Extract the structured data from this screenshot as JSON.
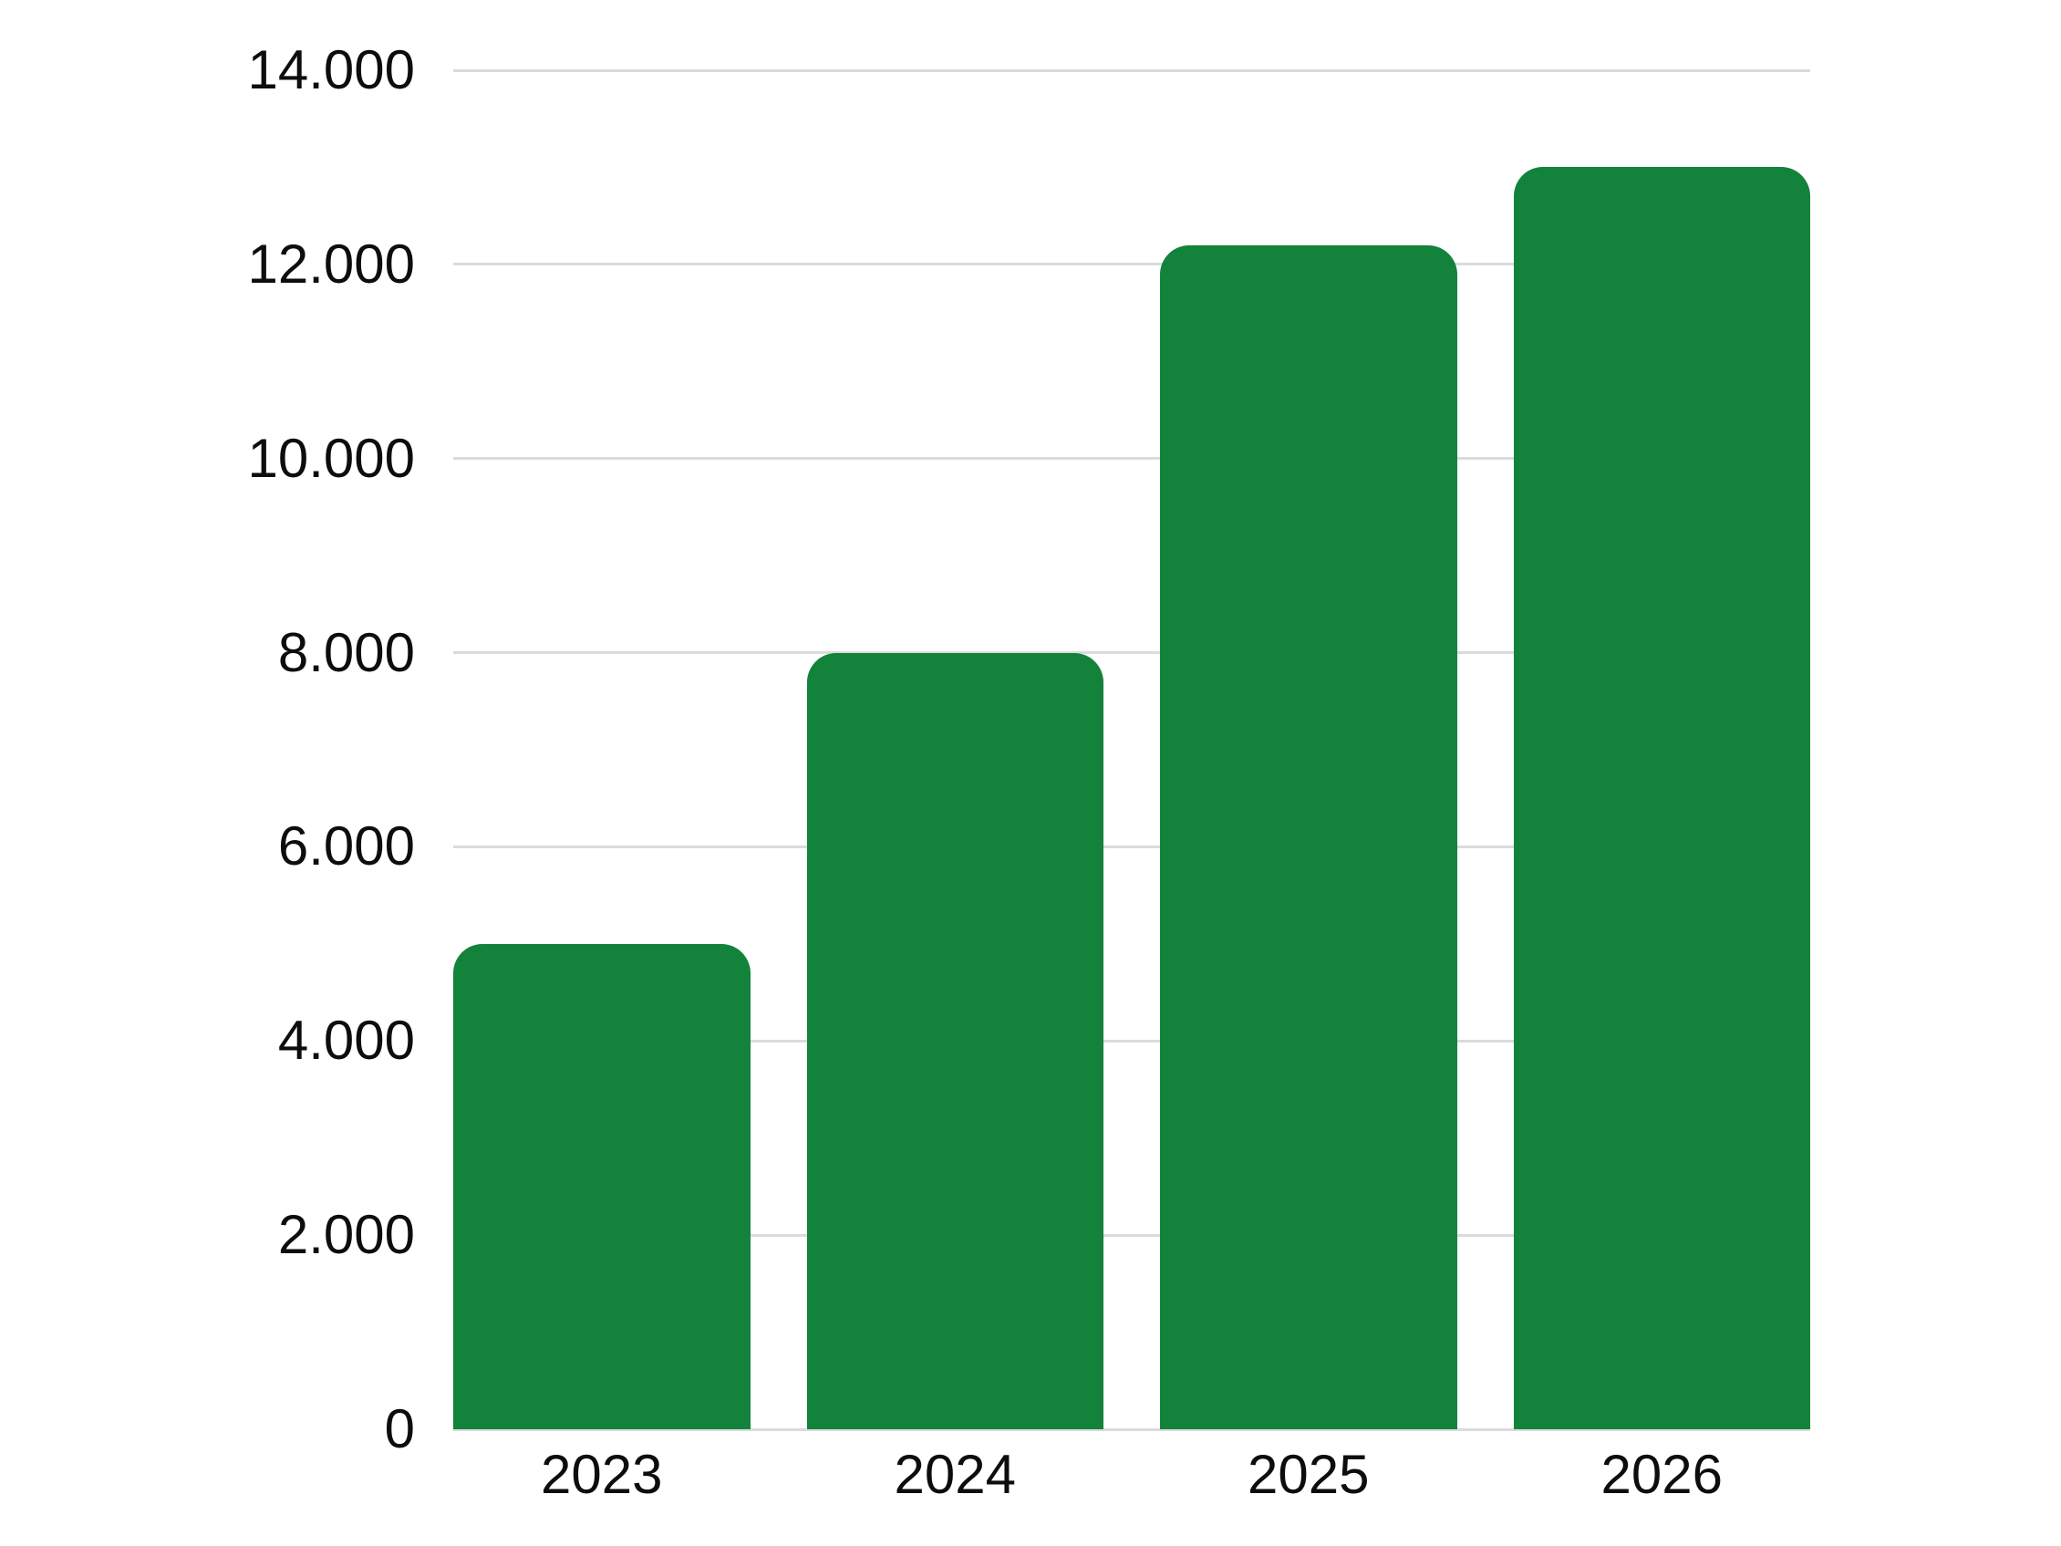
{
  "chart_data": {
    "type": "bar",
    "categories": [
      "2023",
      "2024",
      "2025",
      "2026"
    ],
    "values": [
      5000,
      8000,
      12200,
      13000
    ],
    "yticks": [
      {
        "value": 0,
        "label": "0"
      },
      {
        "value": 2000,
        "label": "2.000"
      },
      {
        "value": 4000,
        "label": "4.000"
      },
      {
        "value": 6000,
        "label": "6.000"
      },
      {
        "value": 8000,
        "label": "8.000"
      },
      {
        "value": 10000,
        "label": "10.000"
      },
      {
        "value": 12000,
        "label": "12.000"
      },
      {
        "value": 14000,
        "label": "14.000"
      }
    ],
    "ylim": [
      0,
      14000
    ],
    "xlabel": "",
    "ylabel": "",
    "grid": "horizontal",
    "legend": "none",
    "bar_color": "#13823B",
    "gridline_color": "#dbdbdb",
    "text_color": "#0d0d0d",
    "background_color": "#ffffff"
  }
}
